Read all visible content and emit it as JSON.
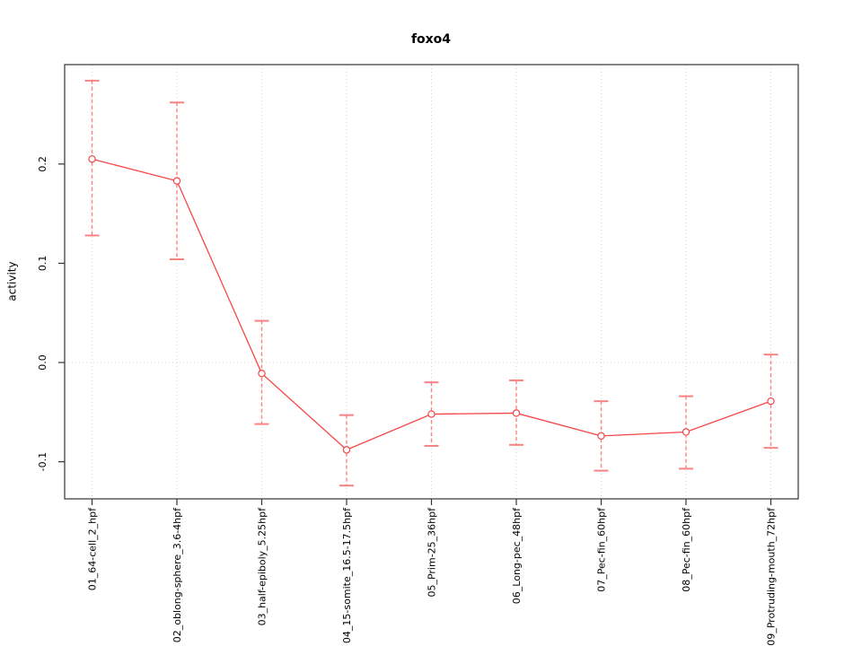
{
  "figure": {
    "title": "foxo4",
    "background": "#ffffff"
  },
  "chart_data": {
    "type": "line",
    "title": "foxo4",
    "xlabel": "",
    "ylabel": "activity",
    "categories": [
      "01_64-cell_2_hpf",
      "02_oblong-sphere_3.6-4hpf",
      "03_half-epiboly_5.25hpf",
      "04_15-somite_16.5-17.5hpf",
      "05_Prim-25_36hpf",
      "06_Long-pec_48hpf",
      "07_Pec-fin_60hpf",
      "08_Pec-fin_60hpf",
      "09_Protruding-mouth_72hpf"
    ],
    "series": [
      {
        "name": "activity",
        "values": [
          0.205,
          0.183,
          -0.011,
          -0.088,
          -0.052,
          -0.051,
          -0.074,
          -0.07,
          -0.039
        ],
        "ci_low": [
          0.128,
          0.104,
          -0.062,
          -0.124,
          -0.084,
          -0.083,
          -0.109,
          -0.107,
          -0.086
        ],
        "ci_high": [
          0.284,
          0.262,
          0.042,
          -0.053,
          -0.02,
          -0.018,
          -0.039,
          -0.034,
          0.008
        ]
      }
    ],
    "yticks": [
      -0.1,
      0.0,
      0.1,
      0.2
    ],
    "ytick_labels": [
      "-0.1",
      "0.0",
      "0.1",
      "0.2"
    ],
    "ylim": [
      -0.1374,
      0.3002
    ],
    "grid": {
      "vertical_at_each_category": true,
      "horizontal_at_zero": true,
      "style": "dotted"
    },
    "legend": "none",
    "marker": "open-circle",
    "colors": {
      "line": "#f74545",
      "point": "#f74545",
      "error_bar": "#f98383",
      "grid": "#d6d6d6",
      "axis": "#333333",
      "text": "#000000"
    }
  }
}
